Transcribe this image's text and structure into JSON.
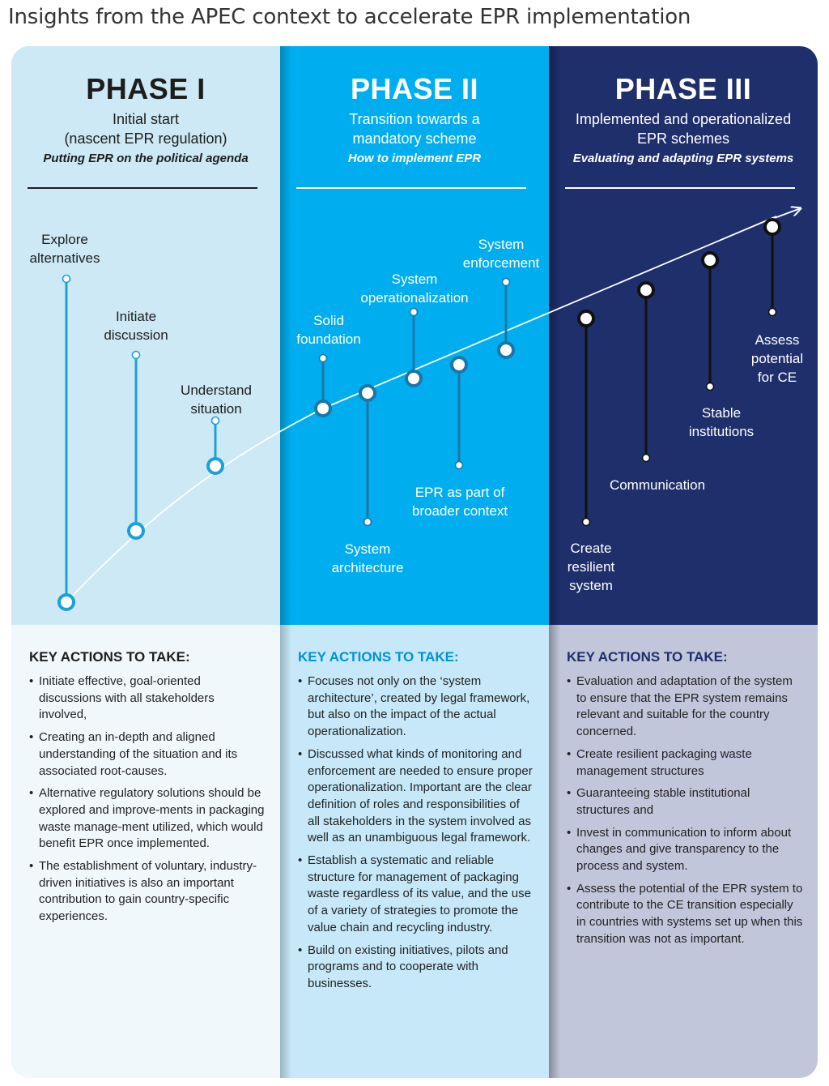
{
  "title": "Insights from the APEC context to accelerate EPR implementation",
  "phases": [
    {
      "name": "PHASE I",
      "subtitle_lines": [
        "Initial start",
        "(nascent EPR regulation)"
      ],
      "tagline": "Putting EPR on the political agenda",
      "key_actions_title": "KEY ACTIONS TO TAKE:",
      "actions": [
        "Initiate effective, goal-oriented discussions with all stakeholders involved,",
        "Creating an in-depth and aligned understanding of the situation and its associated root-causes.",
        "Alternative regulatory solutions should be explored and improve-ments in packaging waste manage-ment utilized, which would benefit EPR once implemented.",
        "The establishment of voluntary, industry-driven initiatives is also an important contribution to gain country-specific experiences."
      ]
    },
    {
      "name": "PHASE II",
      "subtitle_lines": [
        "Transition towards a",
        "mandatory scheme"
      ],
      "tagline": "How to implement EPR",
      "key_actions_title": "KEY ACTIONS TO TAKE:",
      "actions": [
        "Focuses not only on the ‘system architecture’, created by legal framework, but also on the impact of the actual operationalization.",
        "Discussed what kinds of monitoring and enforcement are needed to ensure proper operationalization. Important are the clear definition of roles and responsibilities of all stakeholders in the system involved as well as an unambiguous legal framework.",
        "Establish a systematic and reliable structure for management of packaging waste regardless of its value, and the use of a variety of strategies to promote the value chain and recycling industry.",
        "Build on existing initiatives, pilots and programs and to cooperate with businesses."
      ]
    },
    {
      "name": "PHASE III",
      "subtitle_lines": [
        "Implemented and operationalized",
        "EPR schemes"
      ],
      "tagline": "Evaluating and adapting EPR systems",
      "key_actions_title": "KEY ACTIONS TO TAKE:",
      "actions": [
        "Evaluation and adaptation of the system to ensure that the EPR system remains relevant and suitable for the country concerned.",
        "Create resilient packaging waste management structures",
        "Guaranteeing stable institutional structures and",
        "Invest in communication to inform about changes and give transparency to the process and system.",
        "Assess the potential of the EPR system to contribute to the CE transition especially in countries with systems set up when this transition was not as important."
      ]
    }
  ],
  "milestones": [
    {
      "phase": 1,
      "lines": [
        "Explore",
        "alternatives"
      ]
    },
    {
      "phase": 1,
      "lines": [
        "Initiate",
        "discussion"
      ]
    },
    {
      "phase": 1,
      "lines": [
        "Understand",
        "situation"
      ]
    },
    {
      "phase": 2,
      "lines": [
        "Solid",
        "foundation"
      ]
    },
    {
      "phase": 2,
      "lines": [
        "System",
        "architecture"
      ]
    },
    {
      "phase": 2,
      "lines": [
        "System",
        "operationalization"
      ]
    },
    {
      "phase": 2,
      "lines": [
        "EPR as part of",
        "broader context"
      ]
    },
    {
      "phase": 2,
      "lines": [
        "System",
        "enforcement"
      ]
    },
    {
      "phase": 3,
      "lines": [
        "Create",
        "resilient",
        "system"
      ]
    },
    {
      "phase": 3,
      "lines": [
        "Communication"
      ]
    },
    {
      "phase": 3,
      "lines": [
        "Stable",
        "institutions"
      ]
    },
    {
      "phase": 3,
      "lines": [
        "Assess",
        "potential",
        "for CE"
      ]
    }
  ],
  "colors": {
    "phase1_top": "#cce9f5",
    "phase2_top": "#00aeef",
    "phase3_top": "#1e2f6c",
    "phase1_node": "#1ba1d8",
    "phase2_node": "#1b76a8",
    "phase3_node": "#111111"
  }
}
